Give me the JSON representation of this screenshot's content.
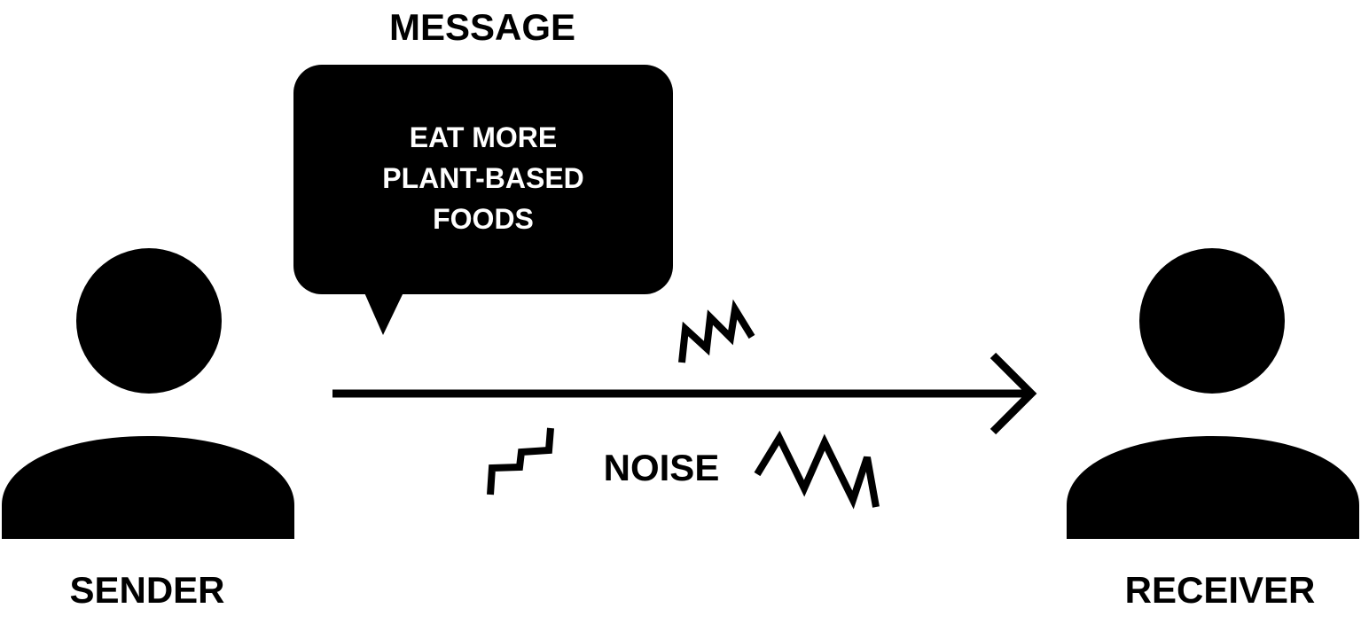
{
  "diagram": {
    "title": "MESSAGE",
    "message": {
      "lines": [
        "EAT MORE",
        "PLANT-BASED",
        "FOODS"
      ]
    },
    "sender": {
      "label": "SENDER"
    },
    "receiver": {
      "label": "RECEIVER"
    },
    "noise": {
      "label": "NOISE"
    },
    "colors": {
      "ink": "#000000",
      "background": "#ffffff",
      "bubble_text": "#ffffff"
    }
  }
}
